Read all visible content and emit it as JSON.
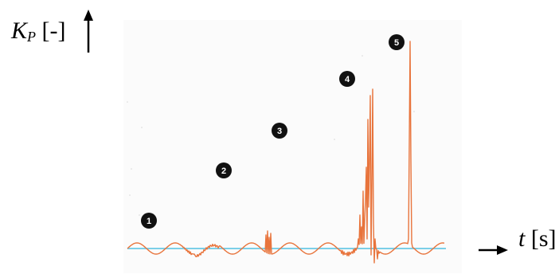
{
  "chart_data": {
    "type": "line",
    "xlabel_var": "t",
    "xlabel_unit": "[s]",
    "ylabel_var": "K",
    "ylabel_sub": "P",
    "ylabel_unit": "[-]",
    "markers": [
      "1",
      "2",
      "3",
      "4",
      "5"
    ],
    "colors": {
      "signal": "#e8743c",
      "baseline": "#7ccfe8",
      "marker": "#111111",
      "axis": "#000000",
      "background": "#fbfbfb"
    }
  }
}
